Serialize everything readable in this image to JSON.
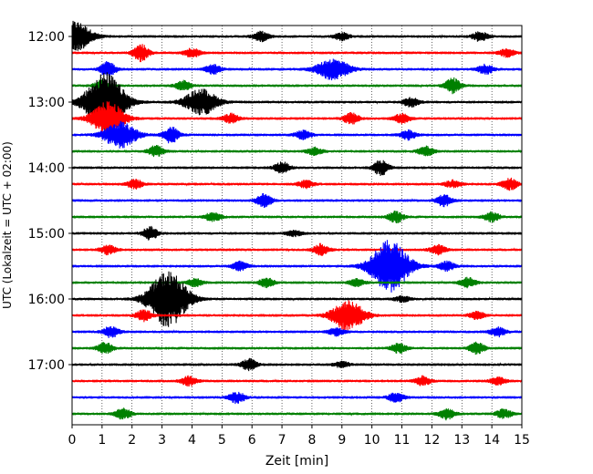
{
  "chart_data": {
    "type": "line",
    "title": "",
    "xlabel": "Zeit  [min]",
    "ylabel": "UTC (Lokalzeit = UTC + 02:00)",
    "xlim": [
      0,
      15
    ],
    "x_ticks": [
      "0",
      "1",
      "2",
      "3",
      "4",
      "5",
      "6",
      "7",
      "8",
      "9",
      "10",
      "11",
      "12",
      "13",
      "14",
      "15"
    ],
    "y_ticks": [
      "12:00",
      "13:00",
      "14:00",
      "15:00",
      "16:00",
      "17:00"
    ],
    "grid": "vertical dotted at each minute",
    "row_interval_minutes": 15,
    "first_row": "12:00",
    "colors": [
      "#000000",
      "#ff0000",
      "#0000ff",
      "#008000"
    ],
    "series": [
      {
        "time": "12:00",
        "color": "#000000",
        "events": [
          {
            "t": 0.1,
            "amp": 16
          },
          {
            "t": 6.3,
            "amp": 5
          },
          {
            "t": 9.0,
            "amp": 4
          },
          {
            "t": 13.6,
            "amp": 5
          }
        ]
      },
      {
        "time": "12:15",
        "color": "#ff0000",
        "events": [
          {
            "t": 2.3,
            "amp": 9
          },
          {
            "t": 4.0,
            "amp": 5
          },
          {
            "t": 14.5,
            "amp": 4
          }
        ]
      },
      {
        "time": "12:30",
        "color": "#0000ff",
        "events": [
          {
            "t": 1.2,
            "amp": 8
          },
          {
            "t": 4.7,
            "amp": 5
          },
          {
            "t": 8.7,
            "amp": 11
          },
          {
            "t": 13.8,
            "amp": 5
          }
        ]
      },
      {
        "time": "12:45",
        "color": "#008000",
        "events": [
          {
            "t": 1.0,
            "amp": 6
          },
          {
            "t": 3.7,
            "amp": 5
          },
          {
            "t": 12.7,
            "amp": 8
          }
        ]
      },
      {
        "time": "13:00",
        "color": "#000000",
        "events": [
          {
            "t": 1.1,
            "amp": 32
          },
          {
            "t": 4.3,
            "amp": 14
          },
          {
            "t": 11.3,
            "amp": 5
          }
        ]
      },
      {
        "time": "13:15",
        "color": "#ff0000",
        "events": [
          {
            "t": 1.2,
            "amp": 18
          },
          {
            "t": 5.3,
            "amp": 5
          },
          {
            "t": 9.3,
            "amp": 6
          },
          {
            "t": 11.0,
            "amp": 5
          }
        ]
      },
      {
        "time": "13:30",
        "color": "#0000ff",
        "events": [
          {
            "t": 1.6,
            "amp": 14
          },
          {
            "t": 3.3,
            "amp": 9
          },
          {
            "t": 7.7,
            "amp": 5
          },
          {
            "t": 11.2,
            "amp": 5
          }
        ]
      },
      {
        "time": "13:45",
        "color": "#008000",
        "events": [
          {
            "t": 2.8,
            "amp": 6
          },
          {
            "t": 8.1,
            "amp": 4
          },
          {
            "t": 11.8,
            "amp": 5
          }
        ]
      },
      {
        "time": "14:00",
        "color": "#000000",
        "events": [
          {
            "t": 7.0,
            "amp": 6
          },
          {
            "t": 10.3,
            "amp": 8
          }
        ]
      },
      {
        "time": "14:15",
        "color": "#ff0000",
        "events": [
          {
            "t": 2.1,
            "amp": 5
          },
          {
            "t": 7.8,
            "amp": 4
          },
          {
            "t": 12.7,
            "amp": 4
          },
          {
            "t": 14.6,
            "amp": 6
          }
        ]
      },
      {
        "time": "14:30",
        "color": "#0000ff",
        "events": [
          {
            "t": 6.4,
            "amp": 7
          },
          {
            "t": 12.4,
            "amp": 6
          }
        ]
      },
      {
        "time": "14:45",
        "color": "#008000",
        "events": [
          {
            "t": 4.7,
            "amp": 5
          },
          {
            "t": 10.8,
            "amp": 6
          },
          {
            "t": 14.0,
            "amp": 5
          }
        ]
      },
      {
        "time": "15:00",
        "color": "#000000",
        "events": [
          {
            "t": 2.6,
            "amp": 7
          },
          {
            "t": 7.4,
            "amp": 3
          }
        ]
      },
      {
        "time": "15:15",
        "color": "#ff0000",
        "events": [
          {
            "t": 1.2,
            "amp": 5
          },
          {
            "t": 8.3,
            "amp": 6
          },
          {
            "t": 12.2,
            "amp": 5
          }
        ]
      },
      {
        "time": "15:30",
        "color": "#0000ff",
        "events": [
          {
            "t": 5.6,
            "amp": 5
          },
          {
            "t": 10.6,
            "amp": 28
          },
          {
            "t": 12.5,
            "amp": 5
          }
        ]
      },
      {
        "time": "15:45",
        "color": "#008000",
        "events": [
          {
            "t": 4.1,
            "amp": 4
          },
          {
            "t": 6.5,
            "amp": 5
          },
          {
            "t": 9.5,
            "amp": 4
          },
          {
            "t": 13.2,
            "amp": 5
          }
        ]
      },
      {
        "time": "16:00",
        "color": "#000000",
        "events": [
          {
            "t": 3.2,
            "amp": 30
          },
          {
            "t": 11.0,
            "amp": 3
          }
        ]
      },
      {
        "time": "16:15",
        "color": "#ff0000",
        "events": [
          {
            "t": 2.4,
            "amp": 6
          },
          {
            "t": 9.2,
            "amp": 16
          },
          {
            "t": 13.5,
            "amp": 4
          }
        ]
      },
      {
        "time": "16:30",
        "color": "#0000ff",
        "events": [
          {
            "t": 1.3,
            "amp": 6
          },
          {
            "t": 8.8,
            "amp": 4
          },
          {
            "t": 14.2,
            "amp": 5
          }
        ]
      },
      {
        "time": "16:45",
        "color": "#008000",
        "events": [
          {
            "t": 1.1,
            "amp": 6
          },
          {
            "t": 10.9,
            "amp": 5
          },
          {
            "t": 13.5,
            "amp": 6
          }
        ]
      },
      {
        "time": "17:00",
        "color": "#000000",
        "events": [
          {
            "t": 5.9,
            "amp": 6
          },
          {
            "t": 9.0,
            "amp": 3
          }
        ]
      },
      {
        "time": "17:15",
        "color": "#ff0000",
        "events": [
          {
            "t": 3.9,
            "amp": 5
          },
          {
            "t": 11.7,
            "amp": 5
          },
          {
            "t": 14.2,
            "amp": 4
          }
        ]
      },
      {
        "time": "17:30",
        "color": "#0000ff",
        "events": [
          {
            "t": 5.5,
            "amp": 6
          },
          {
            "t": 10.8,
            "amp": 5
          }
        ]
      },
      {
        "time": "17:45",
        "color": "#008000",
        "events": [
          {
            "t": 1.7,
            "amp": 6
          },
          {
            "t": 12.5,
            "amp": 6
          },
          {
            "t": 14.4,
            "amp": 5
          }
        ]
      }
    ]
  }
}
